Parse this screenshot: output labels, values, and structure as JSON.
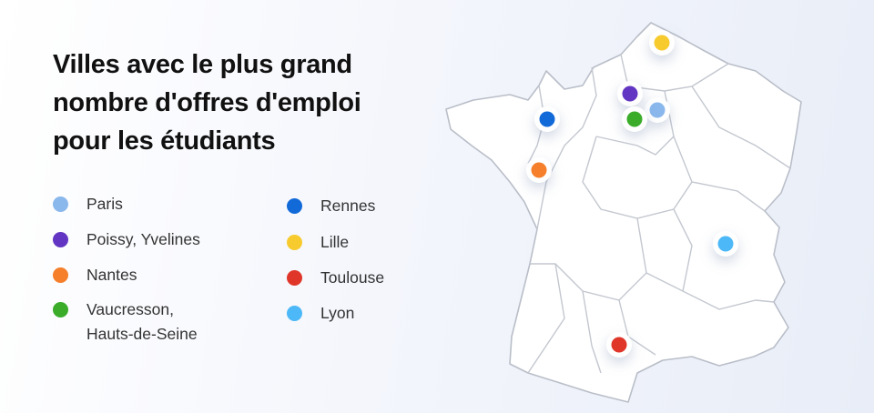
{
  "title": "Villes avec le plus grand nombre d'offres d'emploi pour les étudiants",
  "cities": [
    {
      "name": "Paris",
      "color": "#8ab8ec"
    },
    {
      "name": "Poissy, Yvelines",
      "color": "#6236c2"
    },
    {
      "name": "Nantes",
      "color": "#f57f2a"
    },
    {
      "name": "Vaucresson, Hauts-de-Seine",
      "color": "#3aac2a"
    },
    {
      "name": "Rennes",
      "color": "#1269d8"
    },
    {
      "name": "Lille",
      "color": "#f7cb2d"
    },
    {
      "name": "Toulouse",
      "color": "#e0362a"
    },
    {
      "name": "Lyon",
      "color": "#4db8f7"
    }
  ]
}
